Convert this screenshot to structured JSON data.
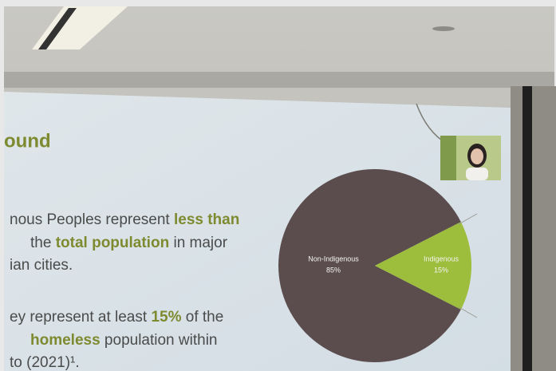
{
  "slide": {
    "title": "ound",
    "paragraphs": [
      [
        [
          {
            "text": "nous Peoples represent "
          },
          {
            "text": "less than",
            "bold": true
          }
        ],
        [
          {
            "text": "the "
          },
          {
            "text": "total population",
            "bold": true
          },
          {
            "text": " in major"
          }
        ],
        [
          {
            "text": "ian cities."
          }
        ]
      ],
      [
        [
          {
            "text": "ey represent at least "
          },
          {
            "text": "15%",
            "bold": true
          },
          {
            "text": " of the"
          }
        ],
        [
          {
            "text": "homeless",
            "bold": true
          },
          {
            "text": " population within"
          }
        ],
        [
          {
            "text": "to (2021)¹."
          }
        ]
      ]
    ]
  },
  "chart_data": {
    "type": "pie",
    "categories": [
      "Non-Indigenous",
      "Indigenous"
    ],
    "values": [
      85,
      15
    ],
    "value_labels": [
      "85%",
      "15%"
    ],
    "colors": [
      "#5b4d4e",
      "#9dbd3c"
    ]
  }
}
